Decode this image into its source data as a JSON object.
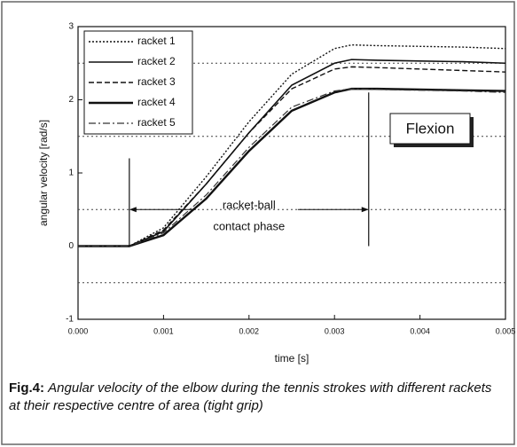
{
  "chart_data": {
    "type": "line",
    "xlabel": "time [s]",
    "ylabel": "angular velocity [rad/s]",
    "x": [
      0,
      0.0006,
      0.001,
      0.0015,
      0.002,
      0.0025,
      0.003,
      0.0032,
      0.0035,
      0.004,
      0.0045,
      0.005
    ],
    "series": [
      {
        "name": "racket 1",
        "color": "#111111",
        "dash": "2,2",
        "width": 1.4,
        "values": [
          0,
          0,
          0.25,
          0.95,
          1.7,
          2.35,
          2.7,
          2.75,
          2.74,
          2.73,
          2.72,
          2.7
        ]
      },
      {
        "name": "racket 2",
        "color": "#111111",
        "dash": "none",
        "width": 1.6,
        "values": [
          0,
          0,
          0.2,
          0.85,
          1.55,
          2.2,
          2.5,
          2.55,
          2.54,
          2.53,
          2.52,
          2.5
        ]
      },
      {
        "name": "racket 3",
        "color": "#111111",
        "dash": "6,3",
        "width": 1.4,
        "values": [
          0,
          0,
          0.22,
          0.85,
          1.55,
          2.15,
          2.42,
          2.45,
          2.44,
          2.42,
          2.4,
          2.38
        ]
      },
      {
        "name": "racket 4",
        "color": "#111111",
        "dash": "none",
        "width": 2.4,
        "values": [
          0,
          0,
          0.15,
          0.65,
          1.3,
          1.85,
          2.1,
          2.15,
          2.15,
          2.14,
          2.13,
          2.12
        ]
      },
      {
        "name": "racket 5",
        "color": "#333333",
        "dash": "8,3,2,3",
        "width": 1.2,
        "values": [
          0,
          0,
          0.18,
          0.7,
          1.35,
          1.9,
          2.12,
          2.15,
          2.14,
          2.13,
          2.12,
          2.1
        ]
      }
    ],
    "xlim": [
      0,
      0.005
    ],
    "xticks": [
      {
        "value": 0,
        "label": "0.000"
      },
      {
        "value": 0.001,
        "label": "0.001"
      },
      {
        "value": 0.002,
        "label": "0.002"
      },
      {
        "value": 0.003,
        "label": "0.003"
      },
      {
        "value": 0.004,
        "label": "0.004"
      },
      {
        "value": 0.005,
        "label": "0.005"
      }
    ],
    "ylim": [
      -1,
      3
    ],
    "yticks": [
      -1,
      0,
      1,
      2,
      3
    ],
    "grid_lines": [
      -0.5,
      0.5,
      1.5,
      2.5
    ],
    "legend": "upper left",
    "box_label": "Flexion",
    "annotation": [
      "racket-ball",
      "contact phase"
    ],
    "contact_phase_x": [
      0.0006,
      0.0034
    ],
    "contact_phase_marker_tops": [
      1.2,
      2.1
    ],
    "caption_label": "Fig.4:",
    "caption": "Angular velocity of the elbow during the tennis strokes with different rackets at their respective centre of area (tight grip)"
  }
}
